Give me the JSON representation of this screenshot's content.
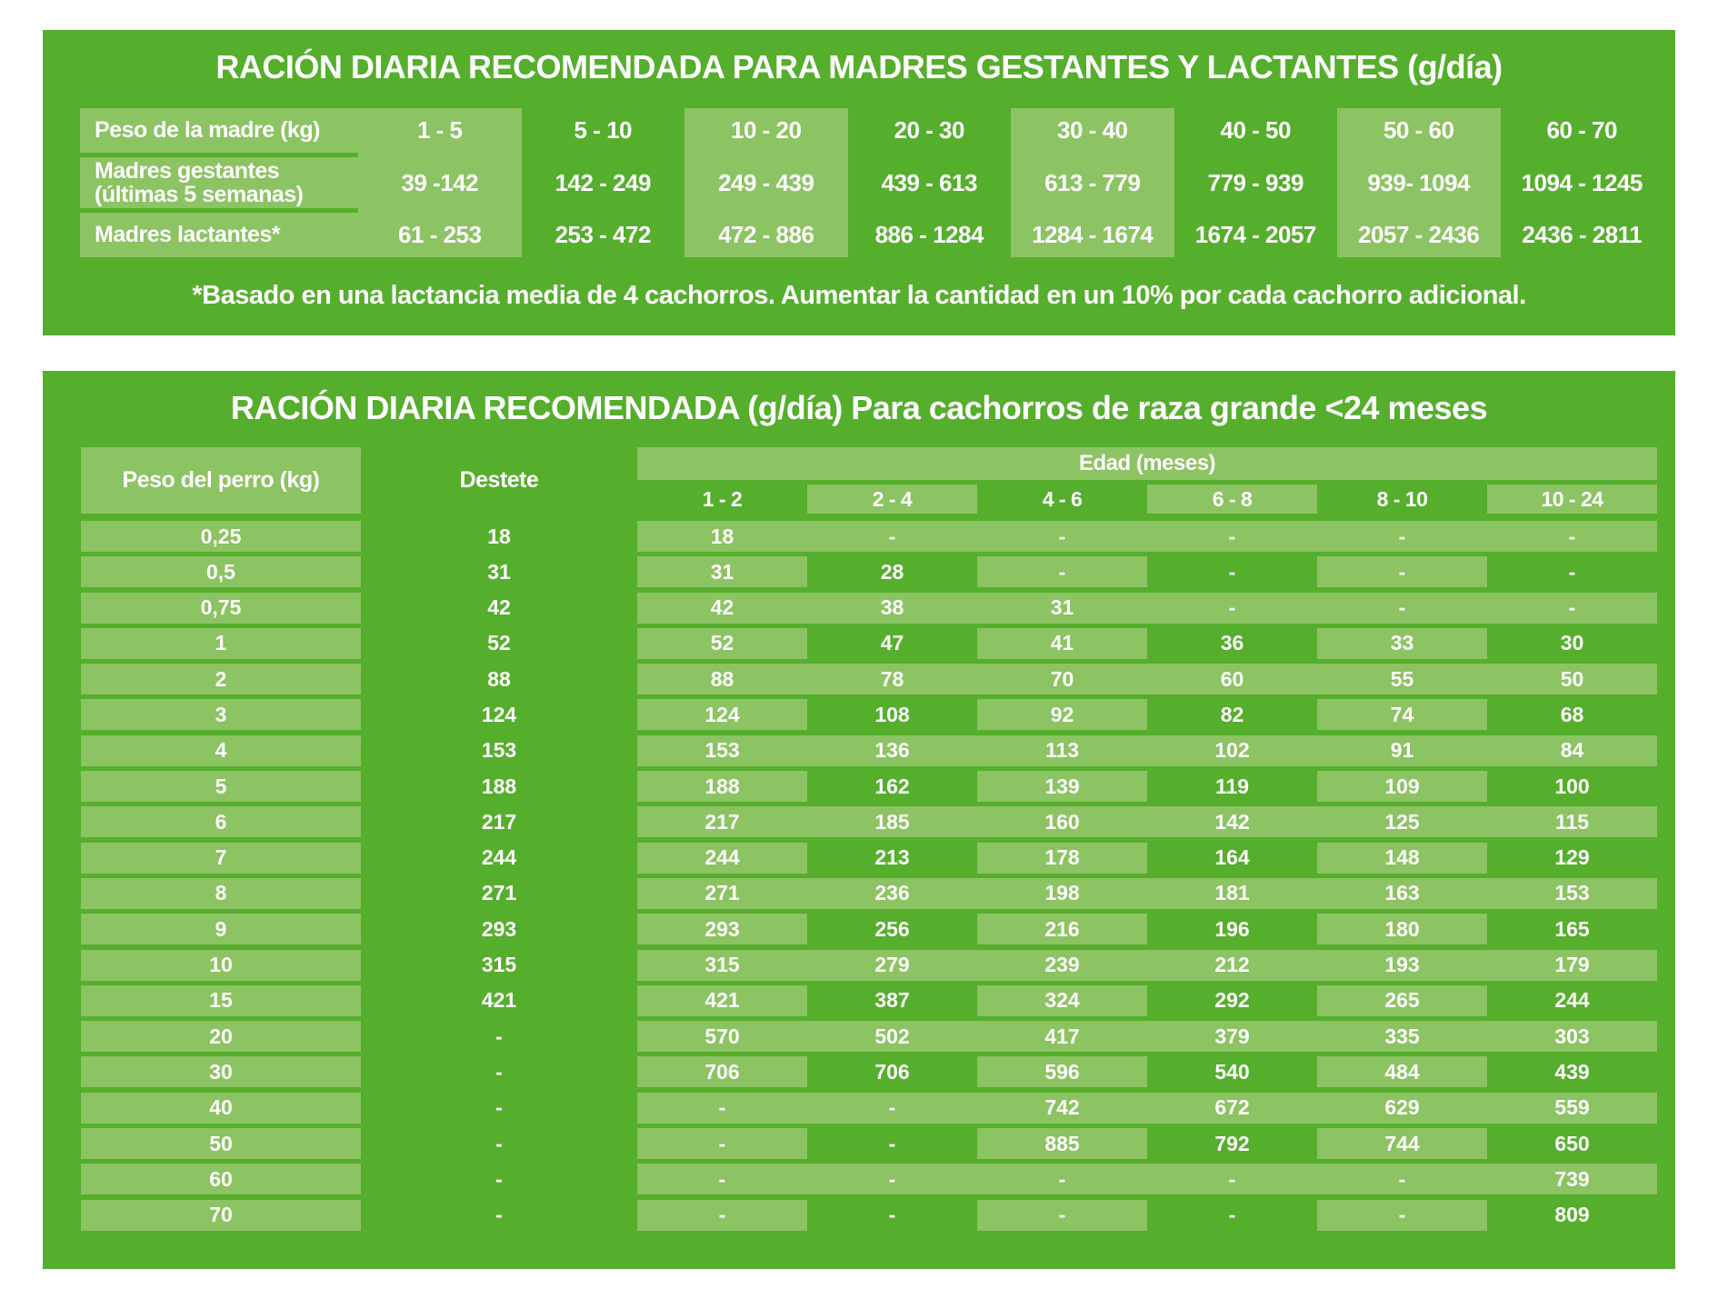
{
  "colors": {
    "panel_green": "#56ae2d",
    "cell_green": "#8cc363",
    "text": "#ffffff",
    "page_background": "#ffffff"
  },
  "table1": {
    "title": "RACIÓN DIARIA RECOMENDADA PARA MADRES GESTANTES Y LACTANTES (g/día)",
    "weight_header_label": "Peso de la madre (kg)",
    "weight_ranges": [
      "1 - 5",
      "5 - 10",
      "10 - 20",
      "20 - 30",
      "30 - 40",
      "40 - 50",
      "50 - 60",
      "60 - 70"
    ],
    "rows": [
      {
        "label_line1": "Madres gestantes",
        "label_line2": "(últimas 5 semanas)",
        "values": [
          "39 -142",
          "142 - 249",
          "249 - 439",
          "439 - 613",
          "613 - 779",
          "779 - 939",
          "939- 1094",
          "1094 - 1245"
        ]
      },
      {
        "label_line1": "Madres lactantes*",
        "label_line2": "",
        "values": [
          "61 - 253",
          "253 - 472",
          "472 - 886",
          "886 - 1284",
          "1284 - 1674",
          "1674 - 2057",
          "2057 - 2436",
          "2436 - 2811"
        ]
      }
    ],
    "footnote": "*Basado en una lactancia media de 4 cachorros. Aumentar la cantidad en un 10% por cada cachorro adicional."
  },
  "table2": {
    "title": "RACIÓN DIARIA RECOMENDADA (g/día) Para cachorros de raza grande <24 meses",
    "weight_col_label": "Peso del perro (kg)",
    "destete_label": "Destete",
    "age_group_label": "Edad (meses)",
    "age_ranges": [
      "1 - 2",
      "2 - 4",
      "4 - 6",
      "6 - 8",
      "8 - 10",
      "10 - 24"
    ],
    "rows": [
      {
        "weight": "0,25",
        "destete": "18",
        "values": [
          "18",
          "-",
          "-",
          "-",
          "-",
          "-"
        ]
      },
      {
        "weight": "0,5",
        "destete": "31",
        "values": [
          "31",
          "28",
          "-",
          "-",
          "-",
          "-"
        ]
      },
      {
        "weight": "0,75",
        "destete": "42",
        "values": [
          "42",
          "38",
          "31",
          "-",
          "-",
          "-"
        ]
      },
      {
        "weight": "1",
        "destete": "52",
        "values": [
          "52",
          "47",
          "41",
          "36",
          "33",
          "30"
        ]
      },
      {
        "weight": "2",
        "destete": "88",
        "values": [
          "88",
          "78",
          "70",
          "60",
          "55",
          "50"
        ]
      },
      {
        "weight": "3",
        "destete": "124",
        "values": [
          "124",
          "108",
          "92",
          "82",
          "74",
          "68"
        ]
      },
      {
        "weight": "4",
        "destete": "153",
        "values": [
          "153",
          "136",
          "113",
          "102",
          "91",
          "84"
        ]
      },
      {
        "weight": "5",
        "destete": "188",
        "values": [
          "188",
          "162",
          "139",
          "119",
          "109",
          "100"
        ]
      },
      {
        "weight": "6",
        "destete": "217",
        "values": [
          "217",
          "185",
          "160",
          "142",
          "125",
          "115"
        ]
      },
      {
        "weight": "7",
        "destete": "244",
        "values": [
          "244",
          "213",
          "178",
          "164",
          "148",
          "129"
        ]
      },
      {
        "weight": "8",
        "destete": "271",
        "values": [
          "271",
          "236",
          "198",
          "181",
          "163",
          "153"
        ]
      },
      {
        "weight": "9",
        "destete": "293",
        "values": [
          "293",
          "256",
          "216",
          "196",
          "180",
          "165"
        ]
      },
      {
        "weight": "10",
        "destete": "315",
        "values": [
          "315",
          "279",
          "239",
          "212",
          "193",
          "179"
        ]
      },
      {
        "weight": "15",
        "destete": "421",
        "values": [
          "421",
          "387",
          "324",
          "292",
          "265",
          "244"
        ]
      },
      {
        "weight": "20",
        "destete": "-",
        "values": [
          "570",
          "502",
          "417",
          "379",
          "335",
          "303"
        ]
      },
      {
        "weight": "30",
        "destete": "-",
        "values": [
          "706",
          "706",
          "596",
          "540",
          "484",
          "439"
        ]
      },
      {
        "weight": "40",
        "destete": "-",
        "values": [
          "-",
          "-",
          "742",
          "672",
          "629",
          "559"
        ]
      },
      {
        "weight": "50",
        "destete": "-",
        "values": [
          "-",
          "-",
          "885",
          "792",
          "744",
          "650"
        ]
      },
      {
        "weight": "60",
        "destete": "-",
        "values": [
          "-",
          "-",
          "-",
          "-",
          "-",
          "739"
        ]
      },
      {
        "weight": "70",
        "destete": "-",
        "values": [
          "-",
          "-",
          "-",
          "-",
          "-",
          "809"
        ]
      }
    ]
  }
}
